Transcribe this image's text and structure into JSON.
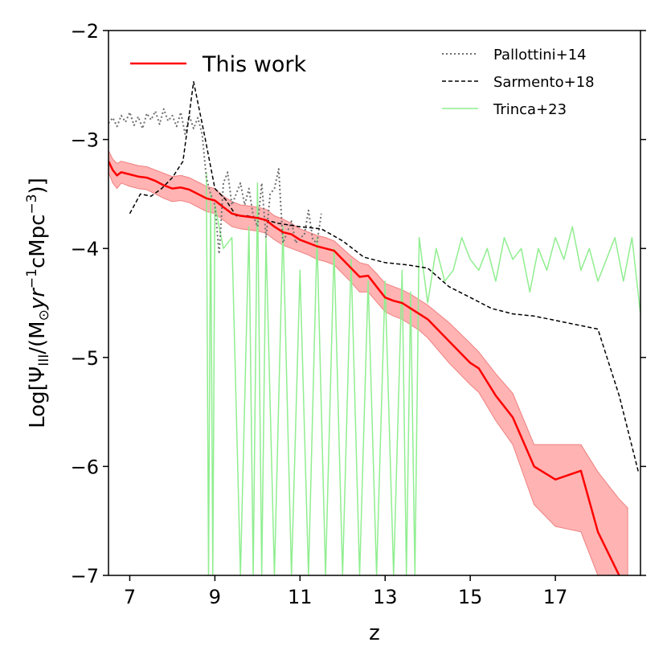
{
  "chart_data": {
    "type": "line",
    "title": "",
    "xlabel": "z",
    "ylabel": "Log[Ψ_III/(M⊙yr⁻¹cMpc⁻³)]",
    "ylabel_parts": {
      "prefix": "Log[Ψ",
      "sub": "III",
      "mid": "/(M",
      "odot": "⊙",
      "yr": "yr",
      "sup1": "−1",
      "unit": "cMpc",
      "sup2": "−3",
      "suffix": ")]"
    },
    "xlim": [
      6.5,
      19.0
    ],
    "ylim": [
      -7,
      -2
    ],
    "xticks": [
      7,
      9,
      11,
      13,
      15,
      17
    ],
    "xtick_labels": [
      "7",
      "9",
      "11",
      "13",
      "15",
      "17"
    ],
    "yticks": [
      -7,
      -6,
      -5,
      -4,
      -3,
      -2
    ],
    "ytick_labels": [
      "−7",
      "−6",
      "−5",
      "−4",
      "−3",
      "−2"
    ],
    "legends": [
      {
        "entries": [
          "This work"
        ],
        "placement": "top-left"
      },
      {
        "entries": [
          "Pallottini+14",
          "Sarmento+18",
          "Trinca+23"
        ],
        "placement": "top-right"
      }
    ],
    "series": [
      {
        "name": "This work",
        "color": "#ff0000",
        "style": "solid",
        "x": [
          6.5,
          6.6,
          6.7,
          6.8,
          7.0,
          7.2,
          7.4,
          7.6,
          7.8,
          8.0,
          8.2,
          8.4,
          8.6,
          8.8,
          9.0,
          9.2,
          9.4,
          9.6,
          9.8,
          10.0,
          10.2,
          10.4,
          10.6,
          10.8,
          11.0,
          11.2,
          11.4,
          11.6,
          11.8,
          12.0,
          12.2,
          12.4,
          12.6,
          12.8,
          13.0,
          13.2,
          13.4,
          13.6,
          13.8,
          14.0,
          14.5,
          15.0,
          15.2,
          15.6,
          16.0,
          16.5,
          17.0,
          17.6,
          18.0,
          18.5,
          18.7
        ],
        "values": [
          -3.2,
          -3.28,
          -3.33,
          -3.3,
          -3.32,
          -3.34,
          -3.35,
          -3.38,
          -3.42,
          -3.45,
          -3.44,
          -3.46,
          -3.5,
          -3.54,
          -3.56,
          -3.62,
          -3.68,
          -3.7,
          -3.71,
          -3.72,
          -3.74,
          -3.8,
          -3.85,
          -3.87,
          -3.92,
          -3.95,
          -3.98,
          -4.0,
          -4.02,
          -4.1,
          -4.18,
          -4.26,
          -4.25,
          -4.35,
          -4.45,
          -4.48,
          -4.5,
          -4.55,
          -4.6,
          -4.65,
          -4.85,
          -5.05,
          -5.1,
          -5.35,
          -5.55,
          -6.0,
          -6.12,
          -6.04,
          -6.6,
          -7.0,
          -7.05
        ],
        "band_upper": [
          -3.1,
          -3.18,
          -3.22,
          -3.2,
          -3.22,
          -3.24,
          -3.25,
          -3.28,
          -3.31,
          -3.34,
          -3.33,
          -3.35,
          -3.39,
          -3.43,
          -3.45,
          -3.52,
          -3.57,
          -3.6,
          -3.61,
          -3.62,
          -3.64,
          -3.7,
          -3.73,
          -3.77,
          -3.82,
          -3.85,
          -3.88,
          -3.9,
          -3.93,
          -4.0,
          -4.07,
          -4.13,
          -4.15,
          -4.23,
          -4.32,
          -4.35,
          -4.38,
          -4.42,
          -4.47,
          -4.52,
          -4.68,
          -4.87,
          -4.95,
          -5.15,
          -5.33,
          -5.8,
          -5.8,
          -5.8,
          -6.05,
          -6.3,
          -6.38
        ],
        "band_lower": [
          -3.3,
          -3.4,
          -3.45,
          -3.4,
          -3.43,
          -3.45,
          -3.46,
          -3.5,
          -3.54,
          -3.57,
          -3.56,
          -3.58,
          -3.62,
          -3.66,
          -3.68,
          -3.74,
          -3.8,
          -3.82,
          -3.83,
          -3.84,
          -3.86,
          -3.92,
          -3.97,
          -4.0,
          -4.03,
          -4.06,
          -4.1,
          -4.12,
          -4.15,
          -4.23,
          -4.31,
          -4.4,
          -4.4,
          -4.49,
          -4.58,
          -4.62,
          -4.65,
          -4.7,
          -4.75,
          -4.82,
          -5.05,
          -5.25,
          -5.32,
          -5.58,
          -5.8,
          -6.35,
          -6.55,
          -6.6,
          -7.0,
          -7.0,
          -7.0
        ]
      },
      {
        "name": "Pallottini+14",
        "color": "#707070",
        "style": "dotted",
        "x": [
          6.5,
          6.6,
          6.7,
          6.8,
          6.9,
          7.0,
          7.1,
          7.2,
          7.3,
          7.4,
          7.5,
          7.6,
          7.7,
          7.8,
          7.9,
          8.0,
          8.1,
          8.2,
          8.3,
          8.4,
          8.5,
          8.6,
          8.7,
          8.8,
          8.9,
          9.0,
          9.1,
          9.2,
          9.3,
          9.4,
          9.5,
          9.6,
          9.7,
          9.8,
          9.9,
          10.0,
          10.1,
          10.2,
          10.3,
          10.4,
          10.5,
          10.6,
          10.7,
          10.8,
          10.9,
          11.0,
          11.1,
          11.2,
          11.3,
          11.4,
          11.5
        ],
        "values": [
          -2.85,
          -2.8,
          -2.88,
          -2.78,
          -2.84,
          -2.75,
          -2.87,
          -2.79,
          -2.9,
          -2.76,
          -2.82,
          -2.74,
          -2.86,
          -2.72,
          -2.83,
          -2.78,
          -2.88,
          -2.75,
          -2.95,
          -2.78,
          -2.9,
          -2.8,
          -2.95,
          -3.35,
          -3.5,
          -3.6,
          -4.05,
          -3.4,
          -3.3,
          -3.6,
          -3.5,
          -3.4,
          -3.6,
          -3.45,
          -3.7,
          -3.8,
          -3.4,
          -3.9,
          -3.5,
          -3.45,
          -3.27,
          -3.95,
          -3.85,
          -3.75,
          -3.95,
          -3.9,
          -3.88,
          -3.65,
          -3.92,
          -3.95,
          -3.68
        ]
      },
      {
        "name": "Sarmento+18",
        "color": "#000000",
        "style": "dashed",
        "x": [
          7.0,
          7.25,
          7.5,
          7.75,
          8.0,
          8.25,
          8.5,
          8.75,
          9.0,
          9.25,
          9.5,
          9.75,
          10.0,
          10.5,
          11.0,
          11.5,
          12.0,
          12.5,
          13.0,
          13.5,
          14.0,
          14.5,
          15.0,
          15.5,
          16.0,
          16.5,
          17.0,
          17.5,
          18.0,
          18.5,
          18.95
        ],
        "values": [
          -3.68,
          -3.5,
          -3.52,
          -3.45,
          -3.35,
          -3.2,
          -2.47,
          -2.95,
          -3.45,
          -3.55,
          -3.7,
          -3.7,
          -3.72,
          -3.77,
          -3.8,
          -3.82,
          -3.93,
          -4.08,
          -4.13,
          -4.15,
          -4.18,
          -4.35,
          -4.45,
          -4.55,
          -4.6,
          -4.62,
          -4.66,
          -4.7,
          -4.74,
          -5.35,
          -6.05
        ]
      },
      {
        "name": "Trinca+23",
        "color": "#90ee90",
        "style": "solid",
        "x": [
          8.8,
          8.85,
          8.9,
          8.95,
          9.0,
          9.2,
          9.4,
          9.6,
          9.8,
          9.9,
          10.0,
          10.1,
          10.2,
          10.4,
          10.6,
          10.8,
          11.0,
          11.2,
          11.4,
          11.6,
          11.8,
          12.0,
          12.2,
          12.4,
          12.6,
          12.8,
          13.0,
          13.2,
          13.4,
          13.5,
          13.6,
          13.7,
          13.8,
          14.0,
          14.2,
          14.4,
          14.6,
          14.8,
          15.0,
          15.2,
          15.4,
          15.6,
          15.8,
          16.0,
          16.2,
          16.4,
          16.6,
          16.8,
          17.0,
          17.2,
          17.4,
          17.6,
          17.8,
          18.0,
          18.2,
          18.4,
          18.6,
          18.8,
          19.0
        ],
        "values": [
          -3.3,
          -7.0,
          -3.5,
          -7.0,
          -3.6,
          -4.0,
          -3.9,
          -7.0,
          -3.8,
          -7.0,
          -3.4,
          -7.0,
          -3.9,
          -7.0,
          -3.8,
          -7.0,
          -4.2,
          -7.0,
          -3.9,
          -7.0,
          -4.0,
          -7.0,
          -4.1,
          -7.0,
          -4.3,
          -7.0,
          -4.3,
          -7.0,
          -4.2,
          -7.0,
          -4.4,
          -7.0,
          -3.9,
          -4.5,
          -4.0,
          -4.3,
          -4.2,
          -3.9,
          -4.1,
          -4.2,
          -4.0,
          -4.3,
          -3.9,
          -4.1,
          -4.0,
          -4.4,
          -4.0,
          -4.2,
          -3.9,
          -4.1,
          -3.8,
          -4.2,
          -4.0,
          -4.3,
          -4.1,
          -3.9,
          -4.3,
          -3.9,
          -4.6
        ]
      }
    ]
  }
}
